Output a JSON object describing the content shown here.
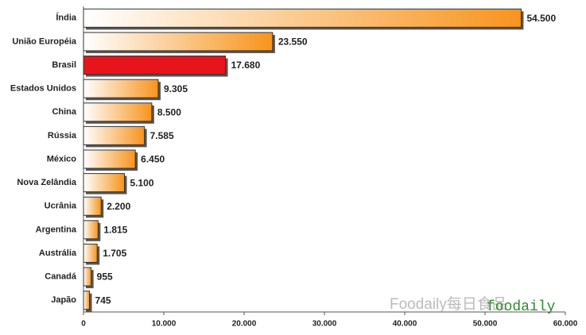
{
  "chart_data": {
    "type": "hbar",
    "categories": [
      "Índia",
      "União Européia",
      "Brasil",
      "Estados Unidos",
      "China",
      "Rússia",
      "México",
      "Nova Zelândia",
      "Ucrânia",
      "Argentina",
      "Austrália",
      "Canadá",
      "Japão"
    ],
    "values": [
      54500,
      23550,
      17680,
      9305,
      8500,
      7585,
      6450,
      5100,
      2200,
      1815,
      1705,
      955,
      745
    ],
    "value_labels": [
      "54.500",
      "23.550",
      "17.680",
      "9.305",
      "8.500",
      "7.585",
      "6.450",
      "5.100",
      "2.200",
      "1.815",
      "1.705",
      "955",
      "745"
    ],
    "colors": [
      "#f7941d",
      "#f7941d",
      "#e8141b",
      "#f7941d",
      "#f7941d",
      "#f7941d",
      "#f7941d",
      "#f7941d",
      "#f7941d",
      "#f7941d",
      "#f7941d",
      "#f7941d",
      "#f7941d"
    ],
    "fill_style": [
      "gradient",
      "gradient",
      "solid",
      "gradient",
      "gradient",
      "gradient",
      "gradient",
      "gradient",
      "gradient",
      "gradient",
      "gradient",
      "gradient",
      "gradient"
    ],
    "xlim": [
      0,
      60000
    ],
    "xticks": [
      0,
      {
        "value": 10000,
        "label": "10.000"
      },
      {
        "value": 20000,
        "label": "20.000"
      },
      {
        "value": 30000,
        "label": "30.000"
      },
      {
        "value": 40000,
        "label": "40.000"
      },
      {
        "value": 50000,
        "label": "50.000"
      },
      {
        "value": 60000,
        "label": "60.000"
      }
    ],
    "grid": false,
    "watermark": "Foodaily每日食品",
    "watermark_overlay": "foodaily"
  }
}
